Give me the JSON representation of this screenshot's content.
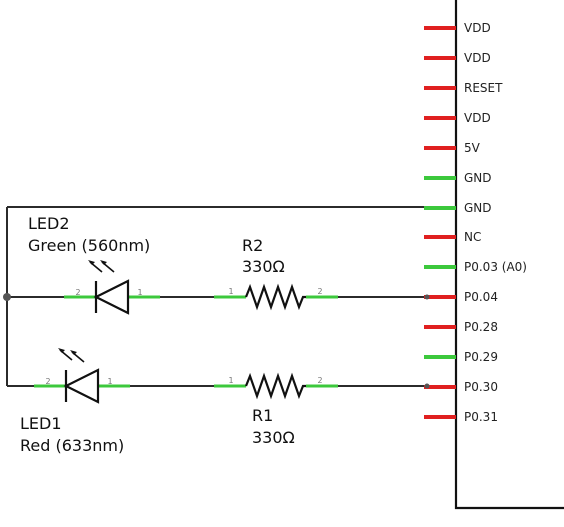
{
  "colors": {
    "wire": "#2b2b2b",
    "active_pin": "#3cc83c",
    "unused_pin": "#e02020",
    "symbol": "#111111"
  },
  "header": {
    "pins": [
      {
        "label": "VDD",
        "state": "unused"
      },
      {
        "label": "VDD",
        "state": "unused"
      },
      {
        "label": "RESET",
        "state": "unused"
      },
      {
        "label": "VDD",
        "state": "unused"
      },
      {
        "label": "5V",
        "state": "unused"
      },
      {
        "label": "GND",
        "state": "active"
      },
      {
        "label": "GND",
        "state": "active"
      },
      {
        "label": "NC",
        "state": "unused"
      },
      {
        "label": "P0.03 (A0)",
        "state": "active"
      },
      {
        "label": "P0.04",
        "state": "unused"
      },
      {
        "label": "P0.28",
        "state": "unused"
      },
      {
        "label": "P0.29",
        "state": "active"
      },
      {
        "label": "P0.30",
        "state": "unused"
      },
      {
        "label": "P0.31",
        "state": "unused"
      }
    ]
  },
  "components": {
    "led2": {
      "name": "LED2",
      "value": "Green (560nm)",
      "pin_left": "2",
      "pin_right": "1"
    },
    "r2": {
      "name": "R2",
      "value": "330Ω",
      "pin_left": "1",
      "pin_right": "2"
    },
    "led1": {
      "name": "LED1",
      "value": "Red (633nm)",
      "pin_left": "2",
      "pin_right": "1"
    },
    "r1": {
      "name": "R1",
      "value": "330Ω",
      "pin_left": "1",
      "pin_right": "2"
    }
  }
}
